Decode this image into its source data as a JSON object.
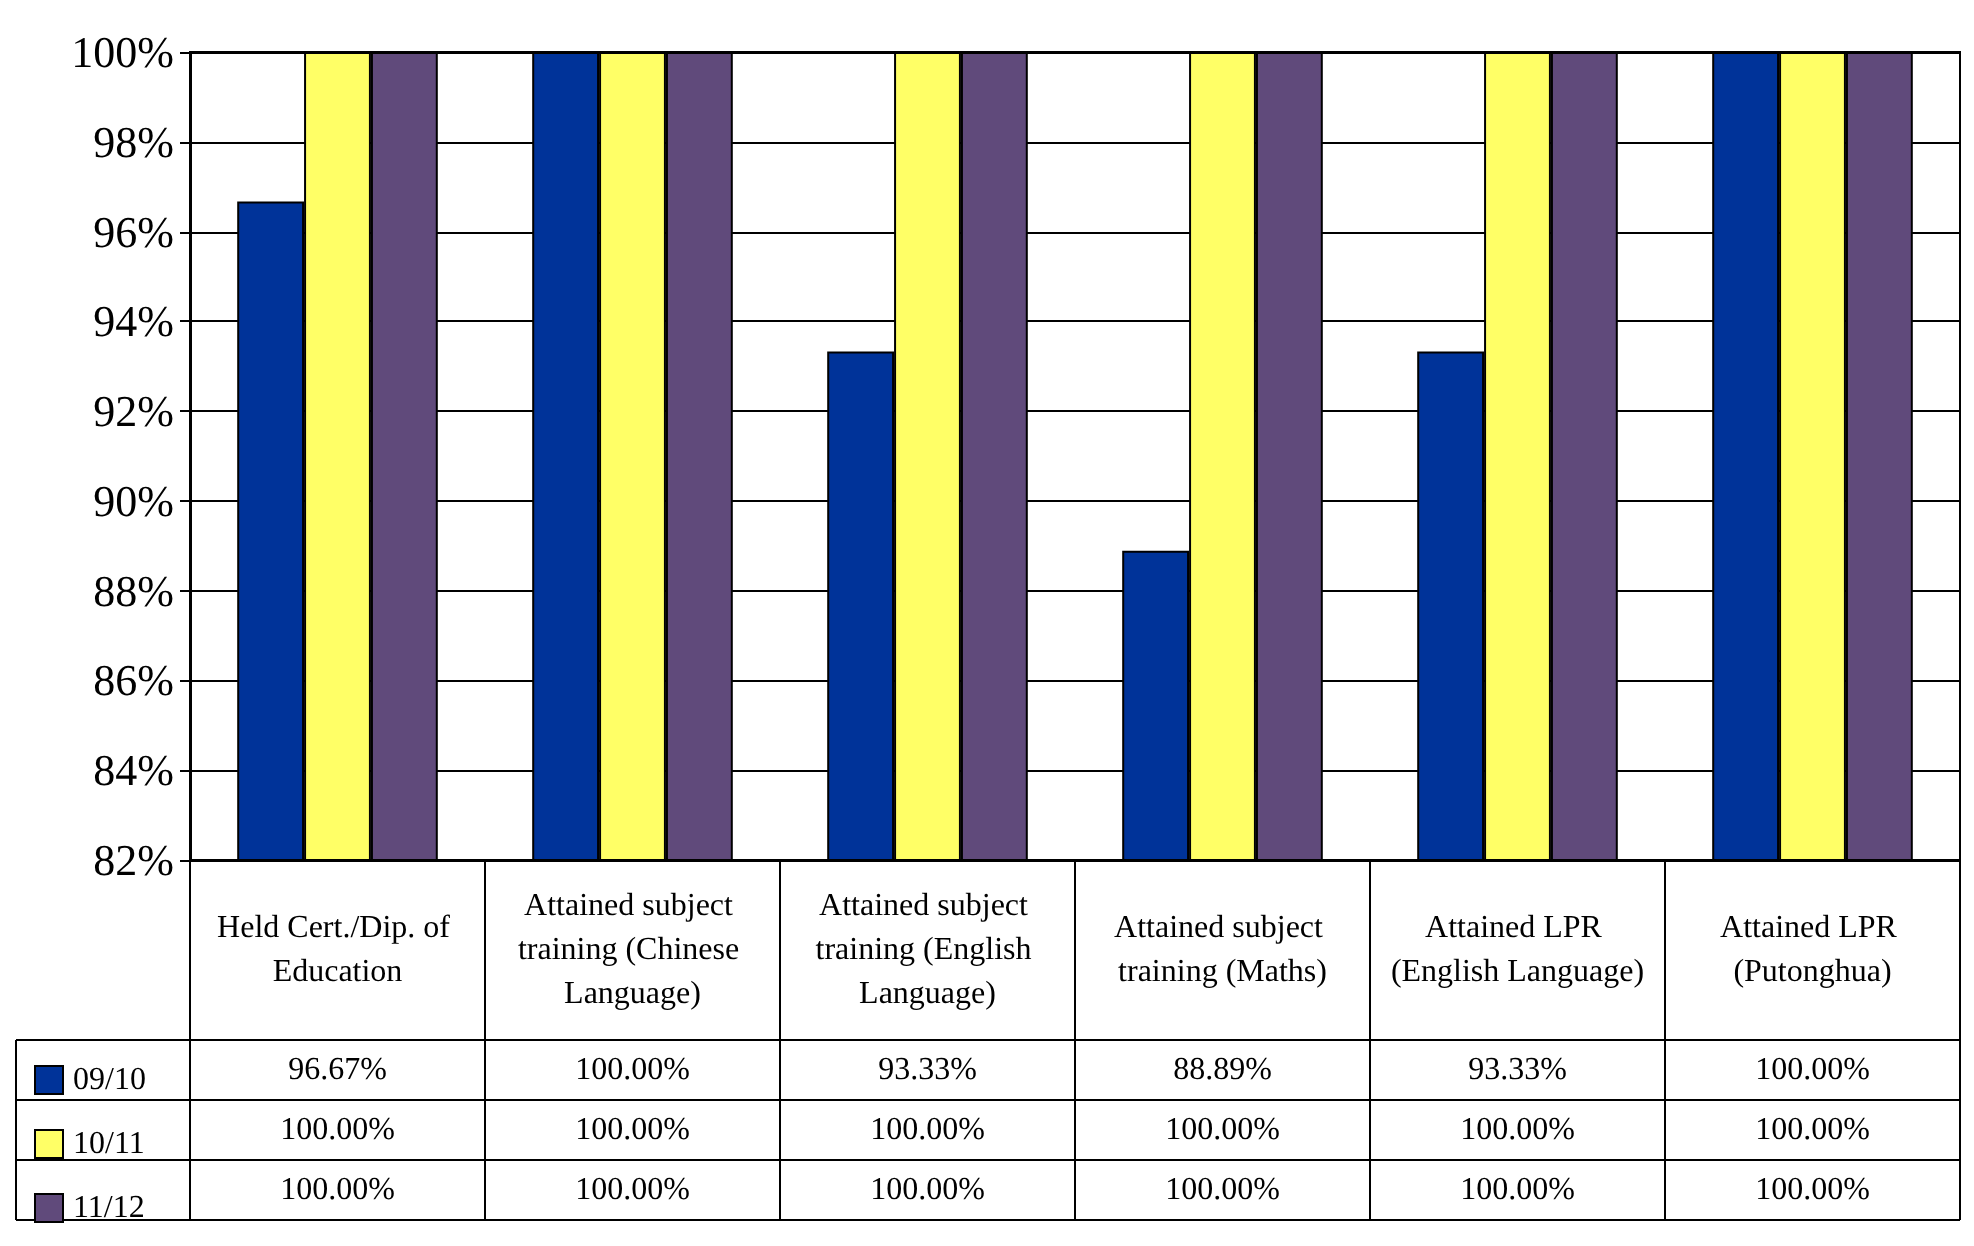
{
  "chart_data": {
    "type": "bar",
    "categories": [
      "Held Cert./Dip. of Education",
      "Attained subject training (Chinese Language)",
      "Attained subject training (English Language)",
      "Attained subject training (Maths)",
      "Attained LPR (English Language)",
      "Attained LPR (Putonghua)"
    ],
    "series": [
      {
        "name": "09/10",
        "color": "#003399",
        "values": [
          96.67,
          100,
          93.33,
          88.89,
          93.33,
          100
        ],
        "value_labels": [
          "96.67%",
          "100.00%",
          "93.33%",
          "88.89%",
          "93.33%",
          "100.00%"
        ]
      },
      {
        "name": "10/11",
        "color": "#ffff66",
        "values": [
          100,
          100,
          100,
          100,
          100,
          100
        ],
        "value_labels": [
          "100.00%",
          "100.00%",
          "100.00%",
          "100.00%",
          "100.00%",
          "100.00%"
        ]
      },
      {
        "name": "11/12",
        "color": "#604a7b",
        "values": [
          100,
          100,
          100,
          100,
          100,
          100
        ],
        "value_labels": [
          "100.00%",
          "100.00%",
          "100.00%",
          "100.00%",
          "100.00%",
          "100.00%"
        ]
      }
    ],
    "ylim": [
      82,
      100
    ],
    "yticks": [
      {
        "value": 82,
        "label": "82%"
      },
      {
        "value": 84,
        "label": "84%"
      },
      {
        "value": 86,
        "label": "86%"
      },
      {
        "value": 88,
        "label": "88%"
      },
      {
        "value": 90,
        "label": "90%"
      },
      {
        "value": 92,
        "label": "92%"
      },
      {
        "value": 94,
        "label": "94%"
      },
      {
        "value": 96,
        "label": "96%"
      },
      {
        "value": 98,
        "label": "98%"
      },
      {
        "value": 100,
        "label": "100%"
      }
    ],
    "grid": "y",
    "legend": "bottom left"
  }
}
